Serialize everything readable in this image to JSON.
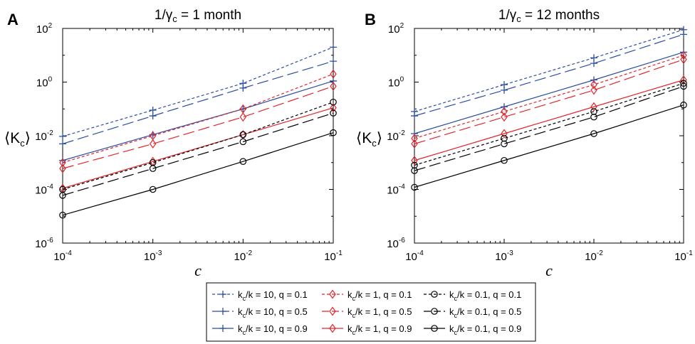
{
  "figure": {
    "panels": [
      {
        "letter": "A",
        "title_lhs": "1/γ",
        "title_sub": "c",
        "title_rhs": " = 1 month"
      },
      {
        "letter": "B",
        "title_lhs": "1/γ",
        "title_sub": "c",
        "title_rhs": " = 12 months"
      }
    ],
    "xlabel": "c",
    "ylabel_main": "K",
    "ylabel_sub": "c",
    "xticks": [
      {
        "base": "10",
        "exp": "-4"
      },
      {
        "base": "10",
        "exp": "-3"
      },
      {
        "base": "10",
        "exp": "-2"
      },
      {
        "base": "10",
        "exp": "-1"
      }
    ],
    "yticks": [
      {
        "base": "10",
        "exp": "2"
      },
      {
        "base": "10",
        "exp": "0"
      },
      {
        "base": "10",
        "exp": "-2"
      },
      {
        "base": "10",
        "exp": "-4"
      },
      {
        "base": "10",
        "exp": "-6"
      }
    ]
  },
  "chart_data": [
    {
      "type": "line",
      "title": "1/γc = 1 month",
      "xlabel": "c",
      "ylabel": "⟨Kc⟩",
      "xscale": "log",
      "yscale": "log",
      "xlim": [
        0.0001,
        0.1
      ],
      "ylim": [
        1e-06,
        100
      ],
      "grid": false,
      "x": [
        0.0001,
        0.001,
        0.01,
        0.1
      ],
      "series": [
        {
          "name": "kc/k = 10, q = 0.1",
          "color": "#2b4ea0",
          "dash": "short",
          "marker": "plus",
          "values": [
            0.0095,
            0.09,
            0.9,
            20
          ]
        },
        {
          "name": "kc/k = 10, q = 0.5",
          "color": "#2b4ea0",
          "dash": "long",
          "marker": "plus",
          "values": [
            0.005,
            0.055,
            0.6,
            6
          ]
        },
        {
          "name": "kc/k = 10, q = 0.9",
          "color": "#2b4ea0",
          "dash": "solid",
          "marker": "plus",
          "values": [
            0.0012,
            0.011,
            0.1,
            1.1
          ]
        },
        {
          "name": "kc/k = 1, q = 0.1",
          "color": "#e0262b",
          "dash": "short",
          "marker": "diamond",
          "values": [
            0.001,
            0.01,
            0.1,
            2
          ]
        },
        {
          "name": "kc/k = 1, q = 0.5",
          "color": "#e0262b",
          "dash": "long",
          "marker": "diamond",
          "values": [
            0.0006,
            0.005,
            0.05,
            0.7
          ]
        },
        {
          "name": "kc/k = 1, q = 0.9",
          "color": "#e0262b",
          "dash": "solid",
          "marker": "diamond",
          "values": [
            0.00011,
            0.0011,
            0.011,
            0.11
          ]
        },
        {
          "name": "kc/k = 0.1, q = 0.1",
          "color": "#000000",
          "dash": "short",
          "marker": "circle",
          "values": [
            0.0001,
            0.001,
            0.011,
            0.18
          ]
        },
        {
          "name": "kc/k = 0.1, q = 0.5",
          "color": "#000000",
          "dash": "long",
          "marker": "circle",
          "values": [
            6e-05,
            0.0006,
            0.006,
            0.07
          ]
        },
        {
          "name": "kc/k = 0.1, q = 0.9",
          "color": "#000000",
          "dash": "solid",
          "marker": "circle",
          "values": [
            1.1e-05,
            0.0001,
            0.0011,
            0.013
          ]
        }
      ]
    },
    {
      "type": "line",
      "title": "1/γc = 12 months",
      "xlabel": "c",
      "ylabel": "⟨Kc⟩",
      "xscale": "log",
      "yscale": "log",
      "xlim": [
        0.0001,
        0.1
      ],
      "ylim": [
        1e-06,
        100
      ],
      "grid": false,
      "x": [
        0.0001,
        0.001,
        0.01,
        0.1
      ],
      "series": [
        {
          "name": "kc/k = 10, q = 0.1",
          "color": "#2b4ea0",
          "dash": "short",
          "marker": "plus",
          "values": [
            0.08,
            0.8,
            8,
            90
          ]
        },
        {
          "name": "kc/k = 10, q = 0.5",
          "color": "#2b4ea0",
          "dash": "long",
          "marker": "plus",
          "values": [
            0.055,
            0.5,
            5,
            60
          ]
        },
        {
          "name": "kc/k = 10, q = 0.9",
          "color": "#2b4ea0",
          "dash": "solid",
          "marker": "plus",
          "values": [
            0.012,
            0.12,
            1.2,
            13
          ]
        },
        {
          "name": "kc/k = 1, q = 0.1",
          "color": "#e0262b",
          "dash": "short",
          "marker": "diamond",
          "values": [
            0.008,
            0.08,
            0.8,
            10
          ]
        },
        {
          "name": "kc/k = 1, q = 0.5",
          "color": "#e0262b",
          "dash": "long",
          "marker": "diamond",
          "values": [
            0.005,
            0.05,
            0.5,
            7
          ]
        },
        {
          "name": "kc/k = 1, q = 0.9",
          "color": "#e0262b",
          "dash": "solid",
          "marker": "diamond",
          "values": [
            0.0012,
            0.012,
            0.12,
            1.2
          ]
        },
        {
          "name": "kc/k = 0.1, q = 0.1",
          "color": "#000000",
          "dash": "short",
          "marker": "circle",
          "values": [
            0.0008,
            0.008,
            0.08,
            0.9
          ]
        },
        {
          "name": "kc/k = 0.1, q = 0.5",
          "color": "#000000",
          "dash": "long",
          "marker": "circle",
          "values": [
            0.0005,
            0.005,
            0.05,
            0.7
          ]
        },
        {
          "name": "kc/k = 0.1, q = 0.9",
          "color": "#000000",
          "dash": "solid",
          "marker": "circle",
          "values": [
            0.00012,
            0.0012,
            0.012,
            0.14
          ]
        }
      ]
    }
  ],
  "legend": {
    "placement": "bottom",
    "columns": [
      [
        {
          "pre": "k",
          "sub": "c",
          "post": "/k = 10, q = 0.1",
          "series": 0
        },
        {
          "pre": "k",
          "sub": "c",
          "post": "/k = 10, q = 0.5",
          "series": 1
        },
        {
          "pre": "k",
          "sub": "c",
          "post": "/k = 10, q = 0.9",
          "series": 2
        }
      ],
      [
        {
          "pre": "k",
          "sub": "c",
          "post": "/k = 1, q = 0.1",
          "series": 3
        },
        {
          "pre": "k",
          "sub": "c",
          "post": "/k = 1, q = 0.5",
          "series": 4
        },
        {
          "pre": "k",
          "sub": "c",
          "post": "/k = 1, q = 0.9",
          "series": 5
        }
      ],
      [
        {
          "pre": "k",
          "sub": "c",
          "post": "/k = 0.1, q = 0.1",
          "series": 6
        },
        {
          "pre": "k",
          "sub": "c",
          "post": "/k = 0.1, q = 0.5",
          "series": 7
        },
        {
          "pre": "k",
          "sub": "c",
          "post": "/k = 0.1, q = 0.9",
          "series": 8
        }
      ]
    ]
  }
}
